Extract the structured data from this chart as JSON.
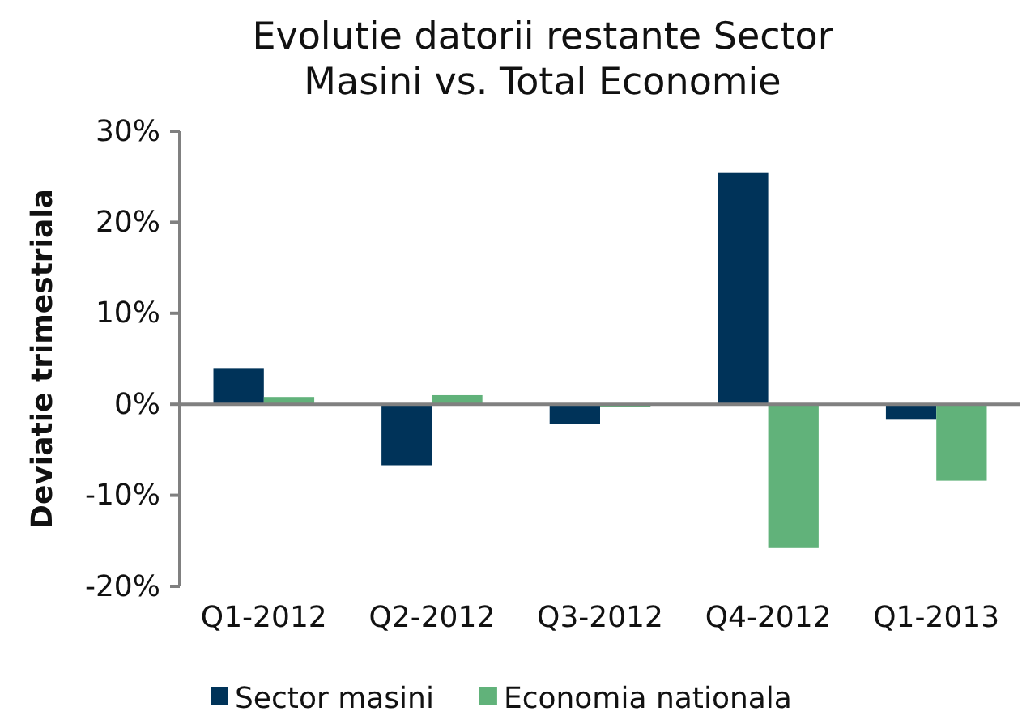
{
  "chart_data": {
    "type": "bar",
    "title": "Evolutie datorii restante Sector Masini vs. Total Economie",
    "ylabel": "Deviatie trimestriala",
    "categories": [
      "Q1-2012",
      "Q2-2012",
      "Q3-2012",
      "Q4-2012",
      "Q1-2013"
    ],
    "series": [
      {
        "name": "Sector masini",
        "color": "#003359",
        "values": [
          3.9,
          -6.7,
          -2.2,
          25.4,
          -1.7
        ]
      },
      {
        "name": "Economia nationala",
        "color": "#61b27a",
        "values": [
          0.8,
          1.0,
          -0.3,
          -15.8,
          -8.4
        ]
      }
    ],
    "ylim": [
      -20,
      30
    ],
    "yticks": [
      {
        "value": -20,
        "label": "-20%"
      },
      {
        "value": -10,
        "label": "-10%"
      },
      {
        "value": 0,
        "label": "0%"
      },
      {
        "value": 10,
        "label": "10%"
      },
      {
        "value": 20,
        "label": "20%"
      },
      {
        "value": 30,
        "label": "30%"
      }
    ],
    "legend": "bottom"
  }
}
